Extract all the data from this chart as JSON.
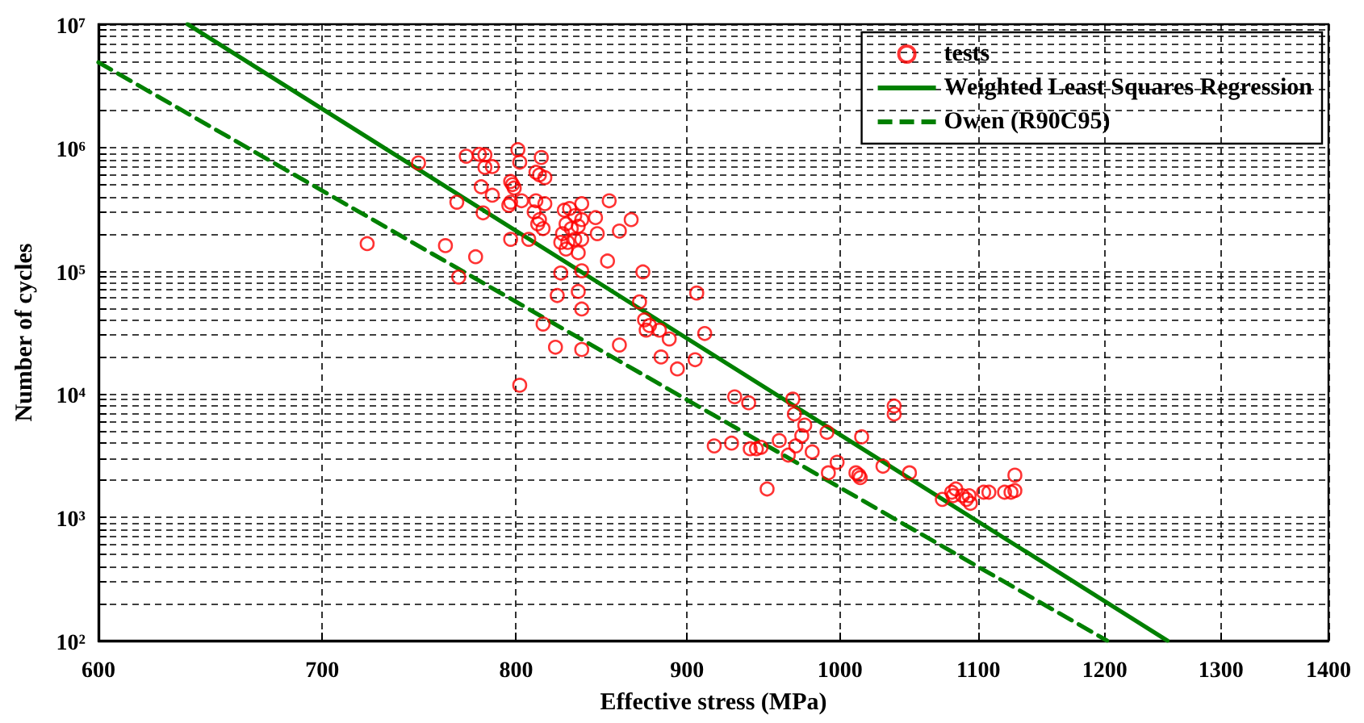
{
  "chart_data": {
    "type": "scatter",
    "xlabel": "Effective stress (MPa)",
    "ylabel": "Number of cycles",
    "log": "xy",
    "grid": true,
    "legend": "top right",
    "xlim": [
      600,
      1400
    ],
    "xticks": [
      600,
      700,
      800,
      900,
      1000,
      1100,
      1200,
      1300,
      1400
    ],
    "ylim": [
      100,
      10000000
    ],
    "yticks": [
      {
        "value": 100,
        "label": "10²"
      },
      {
        "value": 200,
        "label": null
      },
      {
        "value": 300,
        "label": null
      },
      {
        "value": 400,
        "label": null
      },
      {
        "value": 500,
        "label": null
      },
      {
        "value": 600,
        "label": null
      },
      {
        "value": 700,
        "label": null
      },
      {
        "value": 800,
        "label": null
      },
      {
        "value": 900,
        "label": null
      },
      {
        "value": 1000,
        "label": "10³"
      },
      {
        "value": 2000,
        "label": null
      },
      {
        "value": 3000,
        "label": null
      },
      {
        "value": 4000,
        "label": null
      },
      {
        "value": 5000,
        "label": null
      },
      {
        "value": 6000,
        "label": null
      },
      {
        "value": 7000,
        "label": null
      },
      {
        "value": 8000,
        "label": null
      },
      {
        "value": 9000,
        "label": null
      },
      {
        "value": 10000,
        "label": "10⁴"
      },
      {
        "value": 20000,
        "label": null
      },
      {
        "value": 30000,
        "label": null
      },
      {
        "value": 40000,
        "label": null
      },
      {
        "value": 50000,
        "label": null
      },
      {
        "value": 60000,
        "label": null
      },
      {
        "value": 70000,
        "label": null
      },
      {
        "value": 80000,
        "label": null
      },
      {
        "value": 90000,
        "label": null
      },
      {
        "value": 100000,
        "label": "10⁵"
      },
      {
        "value": 200000,
        "label": null
      },
      {
        "value": 300000,
        "label": null
      },
      {
        "value": 400000,
        "label": null
      },
      {
        "value": 500000,
        "label": null
      },
      {
        "value": 600000,
        "label": null
      },
      {
        "value": 700000,
        "label": null
      },
      {
        "value": 800000,
        "label": null
      },
      {
        "value": 900000,
        "label": null
      },
      {
        "value": 1000000,
        "label": "10⁶"
      },
      {
        "value": 2000000,
        "label": null
      },
      {
        "value": 3000000,
        "label": null
      },
      {
        "value": 4000000,
        "label": null
      },
      {
        "value": 5000000,
        "label": null
      },
      {
        "value": 6000000,
        "label": null
      },
      {
        "value": 7000000,
        "label": null
      },
      {
        "value": 8000000,
        "label": null
      },
      {
        "value": 9000000,
        "label": null
      },
      {
        "value": 10000000,
        "label": "10⁷"
      }
    ],
    "series": [
      {
        "name": "tests",
        "color": "#ff0000",
        "marker": "circle",
        "x": [
          722,
          748,
          762,
          778,
          769,
          768,
          773,
          780,
          783,
          783,
          787,
          781,
          787,
          782,
          801,
          802,
          797,
          798,
          799,
          797,
          796,
          803,
          797,
          814,
          811,
          813,
          816,
          811,
          816,
          810,
          813,
          815,
          812,
          807,
          827,
          830,
          837,
          833,
          828,
          831,
          835,
          837,
          826,
          825,
          829,
          833,
          828,
          837,
          845,
          853,
          846,
          859,
          866,
          835,
          837,
          825,
          852,
          873,
          835,
          823,
          837,
          871,
          815,
          822,
          837,
          859,
          802,
          874,
          877,
          875,
          883,
          889,
          884,
          894,
          905,
          906,
          911,
          930,
          939,
          917,
          928,
          940,
          944,
          947,
          951,
          959,
          965,
          970,
          968,
          969,
          976,
          974,
          981,
          991,
          998,
          992,
          1011,
          1013,
          1014,
          1015,
          1030,
          1038,
          1038,
          1049,
          1073,
          1080,
          1083,
          1081,
          1088,
          1091,
          1094,
          1093,
          1104,
          1108,
          1120,
          1125,
          1128,
          1128
        ],
        "values": [
          166000,
          750000,
          160000,
          130000,
          89000,
          360000,
          850000,
          880000,
          870000,
          690000,
          700000,
          480000,
          410000,
          295000,
          960000,
          760000,
          530000,
          500000,
          470000,
          360000,
          340000,
          370000,
          180000,
          830000,
          630000,
          600000,
          570000,
          370000,
          350000,
          300000,
          260000,
          220000,
          240000,
          180000,
          310000,
          320000,
          350000,
          280000,
          240000,
          220000,
          230000,
          260000,
          200000,
          170000,
          170000,
          180000,
          150000,
          180000,
          270000,
          370000,
          200000,
          210000,
          260000,
          140000,
          100000,
          96000,
          120000,
          98000,
          68000,
          63000,
          49000,
          56000,
          37000,
          24000,
          23000,
          25000,
          11800,
          40000,
          36000,
          33000,
          33000,
          28000,
          20000,
          16000,
          19000,
          66000,
          31000,
          9500,
          8500,
          3800,
          4000,
          3600,
          3600,
          3700,
          1700,
          4200,
          3200,
          3800,
          9100,
          6900,
          5600,
          4600,
          3400,
          4900,
          2800,
          2300,
          2300,
          2200,
          2100,
          4500,
          2600,
          8000,
          6900,
          2300,
          1400,
          1600,
          1700,
          1500,
          1500,
          1400,
          1300,
          1500,
          1600,
          1600,
          1600,
          1600,
          1650,
          2200
        ]
      },
      {
        "name": "Weighted Least Squares Regression",
        "type": "line",
        "color": "#008000",
        "marker": "none",
        "line_style": "solid",
        "x": [
          638,
          1253
        ],
        "values": [
          10000000,
          100
        ]
      },
      {
        "name": "Owen (R90C95)",
        "type": "line",
        "color": "#008000",
        "marker": "none",
        "line_style": "dashed",
        "x": [
          600,
          1202
        ],
        "values": [
          4900000,
          100
        ]
      }
    ]
  }
}
